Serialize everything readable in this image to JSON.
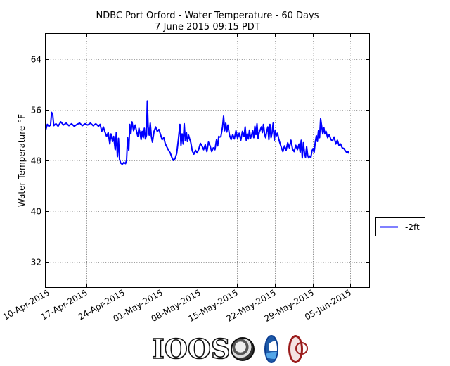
{
  "chart_data": {
    "type": "line",
    "title": "NDBC Port Orford - Water Temperature - 60 Days",
    "subtitle": "7 June 2015 09:15 PDT",
    "xlabel": "",
    "ylabel": "Water Temperature °F",
    "x_range_days": [
      0,
      60
    ],
    "ylim": [
      28,
      68
    ],
    "yticks": [
      32,
      40,
      48,
      56,
      64
    ],
    "xticks": [
      {
        "day": 0.5,
        "label": "10-Apr-2015"
      },
      {
        "day": 7.5,
        "label": "17-Apr-2015"
      },
      {
        "day": 14.5,
        "label": "24-Apr-2015"
      },
      {
        "day": 21.5,
        "label": "01-May-2015"
      },
      {
        "day": 28.5,
        "label": "08-May-2015"
      },
      {
        "day": 35.5,
        "label": "15-May-2015"
      },
      {
        "day": 42.5,
        "label": "22-May-2015"
      },
      {
        "day": 49.5,
        "label": "29-May-2015"
      },
      {
        "day": 56.5,
        "label": "05-Jun-2015"
      }
    ],
    "grid": true,
    "legend_position": "right",
    "colors": {
      "line": "#0000ff"
    },
    "series": [
      {
        "name": "-2ft",
        "points": [
          [
            0,
            52.8
          ],
          [
            0.3,
            53.7
          ],
          [
            0.6,
            53.4
          ],
          [
            0.9,
            53.6
          ],
          [
            1.1,
            55.6
          ],
          [
            1.3,
            55.2
          ],
          [
            1.5,
            53.5
          ],
          [
            1.9,
            53.8
          ],
          [
            2.3,
            53.4
          ],
          [
            2.8,
            54.1
          ],
          [
            3.3,
            53.6
          ],
          [
            3.8,
            53.9
          ],
          [
            4.3,
            53.5
          ],
          [
            4.8,
            53.8
          ],
          [
            5.3,
            53.4
          ],
          [
            5.8,
            53.7
          ],
          [
            6.3,
            53.9
          ],
          [
            6.8,
            53.5
          ],
          [
            7.3,
            53.8
          ],
          [
            7.8,
            53.6
          ],
          [
            8.3,
            53.9
          ],
          [
            8.8,
            53.5
          ],
          [
            9.3,
            53.8
          ],
          [
            9.8,
            53.4
          ],
          [
            10.1,
            53.7
          ],
          [
            10.4,
            52.6
          ],
          [
            10.7,
            53.3
          ],
          [
            11.0,
            52.5
          ],
          [
            11.3,
            51.8
          ],
          [
            11.6,
            52.4
          ],
          [
            11.9,
            50.6
          ],
          [
            12.1,
            52.2
          ],
          [
            12.4,
            51.0
          ],
          [
            12.6,
            51.8
          ],
          [
            12.9,
            49.7
          ],
          [
            13.1,
            52.4
          ],
          [
            13.3,
            48.6
          ],
          [
            13.5,
            51.5
          ],
          [
            13.7,
            48.2
          ],
          [
            13.9,
            47.6
          ],
          [
            14.2,
            47.4
          ],
          [
            14.5,
            47.7
          ],
          [
            14.8,
            47.5
          ],
          [
            15.0,
            48.0
          ],
          [
            15.2,
            51.6
          ],
          [
            15.4,
            49.6
          ],
          [
            15.6,
            53.7
          ],
          [
            15.8,
            52.2
          ],
          [
            16.0,
            54.1
          ],
          [
            16.3,
            52.7
          ],
          [
            16.6,
            53.6
          ],
          [
            16.9,
            52.4
          ],
          [
            17.1,
            51.8
          ],
          [
            17.3,
            53.1
          ],
          [
            17.5,
            52.3
          ],
          [
            17.7,
            51.3
          ],
          [
            17.9,
            52.6
          ],
          [
            18.1,
            51.6
          ],
          [
            18.3,
            53.1
          ],
          [
            18.5,
            51.4
          ],
          [
            18.7,
            52.0
          ],
          [
            18.85,
            57.4
          ],
          [
            19.0,
            53.3
          ],
          [
            19.2,
            52.0
          ],
          [
            19.4,
            53.9
          ],
          [
            19.6,
            51.8
          ],
          [
            19.8,
            50.9
          ],
          [
            20.1,
            52.6
          ],
          [
            20.4,
            53.3
          ],
          [
            20.7,
            52.6
          ],
          [
            21.0,
            52.9
          ],
          [
            21.3,
            52.1
          ],
          [
            21.6,
            51.3
          ],
          [
            21.9,
            51.6
          ],
          [
            22.2,
            50.6
          ],
          [
            22.5,
            50.1
          ],
          [
            22.8,
            49.6
          ],
          [
            23.1,
            49.2
          ],
          [
            23.4,
            48.5
          ],
          [
            23.7,
            48.0
          ],
          [
            24.0,
            48.3
          ],
          [
            24.3,
            49.1
          ],
          [
            24.6,
            51.2
          ],
          [
            24.9,
            53.7
          ],
          [
            25.1,
            50.4
          ],
          [
            25.3,
            52.2
          ],
          [
            25.5,
            50.6
          ],
          [
            25.7,
            53.8
          ],
          [
            25.9,
            51.1
          ],
          [
            26.1,
            52.4
          ],
          [
            26.3,
            51.0
          ],
          [
            26.5,
            52.0
          ],
          [
            26.7,
            51.4
          ],
          [
            26.9,
            50.9
          ],
          [
            27.2,
            49.5
          ],
          [
            27.5,
            49.0
          ],
          [
            27.8,
            49.6
          ],
          [
            28.1,
            49.2
          ],
          [
            28.4,
            49.8
          ],
          [
            28.7,
            50.7
          ],
          [
            29.0,
            50.3
          ],
          [
            29.3,
            49.7
          ],
          [
            29.6,
            50.5
          ],
          [
            29.9,
            49.4
          ],
          [
            30.2,
            50.9
          ],
          [
            30.5,
            50.3
          ],
          [
            30.8,
            49.4
          ],
          [
            31.1,
            50.0
          ],
          [
            31.4,
            49.7
          ],
          [
            31.7,
            51.3
          ],
          [
            31.9,
            50.3
          ],
          [
            32.1,
            51.8
          ],
          [
            32.3,
            51.7
          ],
          [
            32.5,
            51.8
          ],
          [
            32.8,
            53.3
          ],
          [
            33.0,
            55.0
          ],
          [
            33.2,
            52.7
          ],
          [
            33.4,
            53.9
          ],
          [
            33.6,
            52.5
          ],
          [
            33.8,
            53.6
          ],
          [
            34.1,
            52.0
          ],
          [
            34.4,
            51.3
          ],
          [
            34.7,
            52.1
          ],
          [
            35.0,
            51.4
          ],
          [
            35.3,
            52.7
          ],
          [
            35.6,
            51.5
          ],
          [
            35.9,
            52.3
          ],
          [
            36.2,
            51.2
          ],
          [
            36.5,
            52.6
          ],
          [
            36.8,
            51.8
          ],
          [
            37.0,
            53.3
          ],
          [
            37.2,
            51.2
          ],
          [
            37.4,
            52.2
          ],
          [
            37.6,
            51.4
          ],
          [
            37.8,
            52.8
          ],
          [
            38.0,
            51.5
          ],
          [
            38.2,
            52.0
          ],
          [
            38.4,
            52.7
          ],
          [
            38.6,
            51.6
          ],
          [
            38.8,
            53.4
          ],
          [
            39.0,
            52.1
          ],
          [
            39.2,
            53.8
          ],
          [
            39.4,
            51.5
          ],
          [
            39.6,
            52.4
          ],
          [
            39.8,
            52.8
          ],
          [
            40.0,
            53.3
          ],
          [
            40.2,
            52.4
          ],
          [
            40.4,
            53.7
          ],
          [
            40.6,
            52.2
          ],
          [
            40.8,
            51.6
          ],
          [
            41.0,
            52.6
          ],
          [
            41.2,
            53.3
          ],
          [
            41.4,
            51.3
          ],
          [
            41.6,
            53.7
          ],
          [
            41.8,
            51.6
          ],
          [
            42.0,
            52.4
          ],
          [
            42.2,
            53.9
          ],
          [
            42.4,
            51.2
          ],
          [
            42.6,
            52.8
          ],
          [
            42.8,
            51.9
          ],
          [
            43.0,
            52.3
          ],
          [
            43.2,
            51.5
          ],
          [
            43.4,
            50.9
          ],
          [
            43.7,
            50.1
          ],
          [
            44.0,
            49.4
          ],
          [
            44.3,
            50.3
          ],
          [
            44.6,
            49.6
          ],
          [
            44.9,
            50.8
          ],
          [
            45.2,
            50.0
          ],
          [
            45.5,
            51.2
          ],
          [
            45.8,
            49.8
          ],
          [
            46.1,
            49.4
          ],
          [
            46.4,
            50.4
          ],
          [
            46.7,
            49.7
          ],
          [
            47.0,
            50.6
          ],
          [
            47.2,
            49.3
          ],
          [
            47.4,
            51.2
          ],
          [
            47.6,
            48.4
          ],
          [
            47.8,
            50.8
          ],
          [
            48.0,
            49.2
          ],
          [
            48.2,
            48.5
          ],
          [
            48.4,
            50.2
          ],
          [
            48.6,
            48.8
          ],
          [
            48.8,
            48.4
          ],
          [
            49.0,
            48.7
          ],
          [
            49.2,
            48.5
          ],
          [
            49.4,
            49.5
          ],
          [
            49.6,
            49.9
          ],
          [
            49.8,
            49.3
          ],
          [
            50.0,
            50.8
          ],
          [
            50.2,
            51.9
          ],
          [
            50.4,
            51.0
          ],
          [
            50.6,
            52.7
          ],
          [
            50.8,
            51.6
          ],
          [
            51.0,
            54.6
          ],
          [
            51.2,
            53.4
          ],
          [
            51.4,
            52.2
          ],
          [
            51.6,
            53.2
          ],
          [
            51.8,
            52.2
          ],
          [
            52.0,
            52.6
          ],
          [
            52.3,
            51.6
          ],
          [
            52.6,
            52.1
          ],
          [
            52.9,
            51.3
          ],
          [
            53.2,
            51.1
          ],
          [
            53.5,
            51.7
          ],
          [
            53.8,
            50.6
          ],
          [
            54.1,
            51.2
          ],
          [
            54.4,
            50.4
          ],
          [
            54.7,
            50.6
          ],
          [
            55.0,
            50.0
          ],
          [
            55.3,
            49.9
          ],
          [
            55.6,
            49.5
          ],
          [
            55.9,
            49.2
          ],
          [
            56.1,
            49.4
          ],
          [
            56.3,
            49.1
          ]
        ]
      }
    ]
  },
  "logos": {
    "ioos": "IOOS",
    "noaa": "noaa-logo-icon",
    "seal": "seal-logo-icon"
  }
}
